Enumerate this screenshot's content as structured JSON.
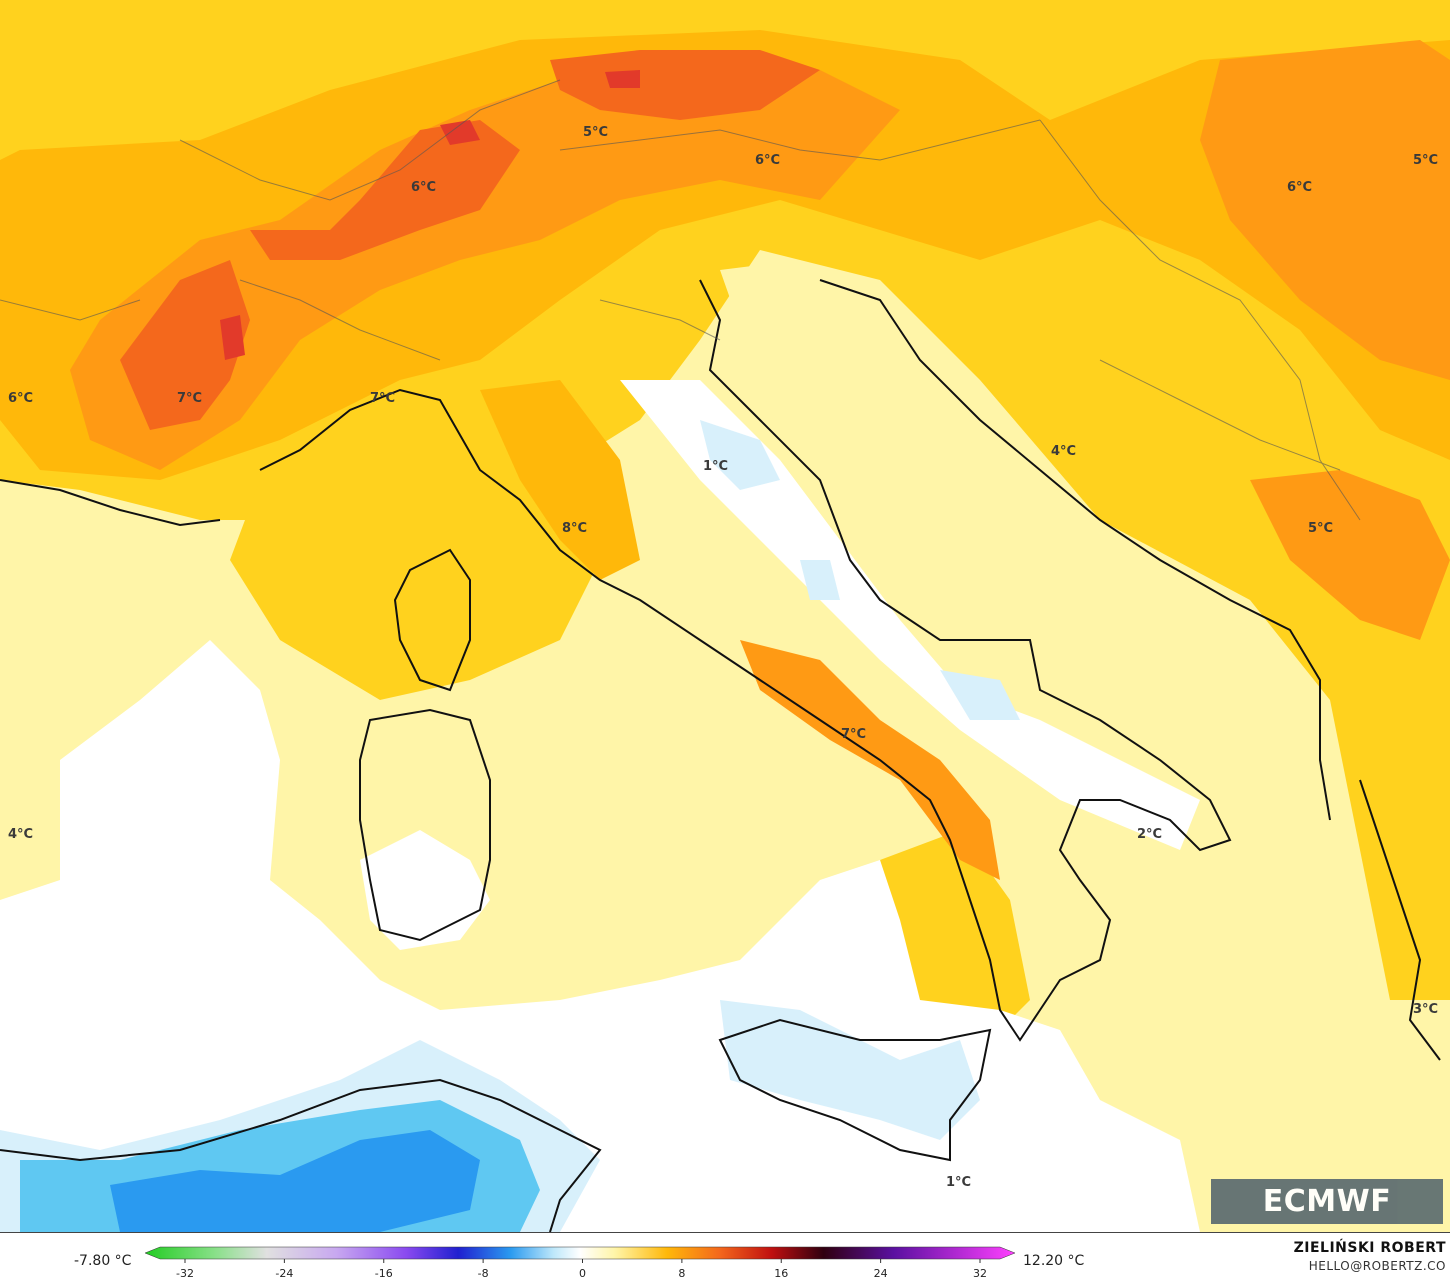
{
  "map": {
    "temperature_labels": [
      {
        "text": "5°C",
        "region": "southern-germany"
      },
      {
        "text": "6°C",
        "region": "switzerland"
      },
      {
        "text": "6°C",
        "region": "austria"
      },
      {
        "text": "5°C",
        "region": "hungary-east"
      },
      {
        "text": "6°C",
        "region": "hungary"
      },
      {
        "text": "6°C",
        "region": "west-france"
      },
      {
        "text": "7°C",
        "region": "french-alps"
      },
      {
        "text": "7°C",
        "region": "maritime-alps"
      },
      {
        "text": "8°C",
        "region": "tuscany-coast"
      },
      {
        "text": "4°C",
        "region": "croatian-coast"
      },
      {
        "text": "5°C",
        "region": "bosnia"
      },
      {
        "text": "1°C",
        "region": "central-apennines"
      },
      {
        "text": "4°C",
        "region": "balearic-sea"
      },
      {
        "text": "7°C",
        "region": "campania"
      },
      {
        "text": "2°C",
        "region": "adriatic-south"
      },
      {
        "text": "3°C",
        "region": "greece-west"
      },
      {
        "text": "1°C",
        "region": "sicily-south"
      }
    ],
    "colors": {
      "pale_yellow": "#fff5a8",
      "yellow": "#ffd21e",
      "amber": "#ffb80a",
      "orange": "#ff9a14",
      "red_orange": "#f4681c",
      "red": "#e23a2a",
      "light_blue": "#d8f0fb",
      "blue": "#5fc8f2",
      "deep_blue": "#2a9af0"
    }
  },
  "legend": {
    "min_label": "-7.80 °C",
    "max_label": "12.20 °C",
    "ticks": [
      "-32",
      "-24",
      "-16",
      "-8",
      "0",
      "8",
      "16",
      "24",
      "32"
    ]
  },
  "credit": {
    "name": "ZIELIŃSKI ROBERT",
    "email": "HELLO@ROBERTZ.CO"
  },
  "logo": {
    "text": "ECMWF"
  }
}
